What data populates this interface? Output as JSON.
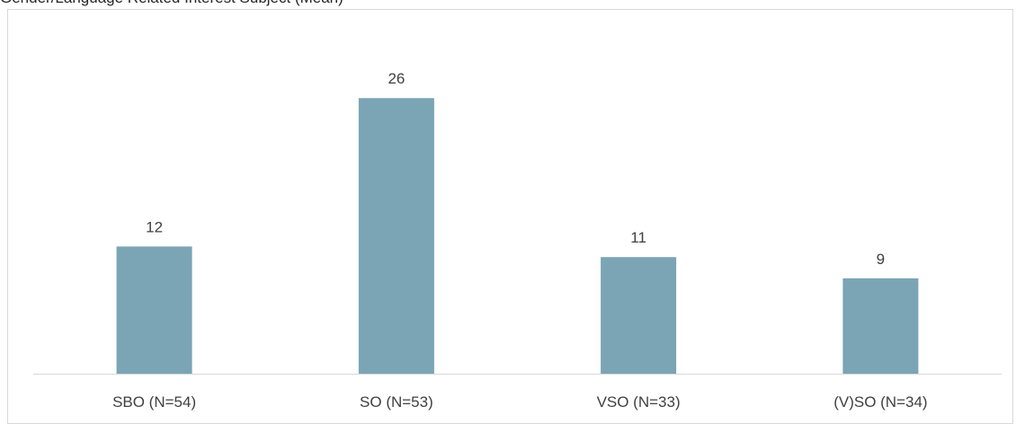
{
  "chart_data": {
    "type": "bar",
    "title": "Gender/Language Related Interest Subject (Mean)",
    "categories": [
      "SBO (N=54)",
      "SO (N=53)",
      "VSO (N=33)",
      "(V)SO (N=34)"
    ],
    "values": [
      12,
      26,
      11,
      9
    ],
    "data_labels": [
      "12",
      "26",
      "11",
      "9"
    ],
    "xlabel": "",
    "ylabel": "",
    "ylim": [
      0,
      28
    ],
    "grid": false,
    "legend": "none",
    "colors": {
      "bar": "#7BA4B5",
      "axis": "#D9D9D9",
      "frame": "#D9D9D9",
      "text": "#404040"
    }
  }
}
